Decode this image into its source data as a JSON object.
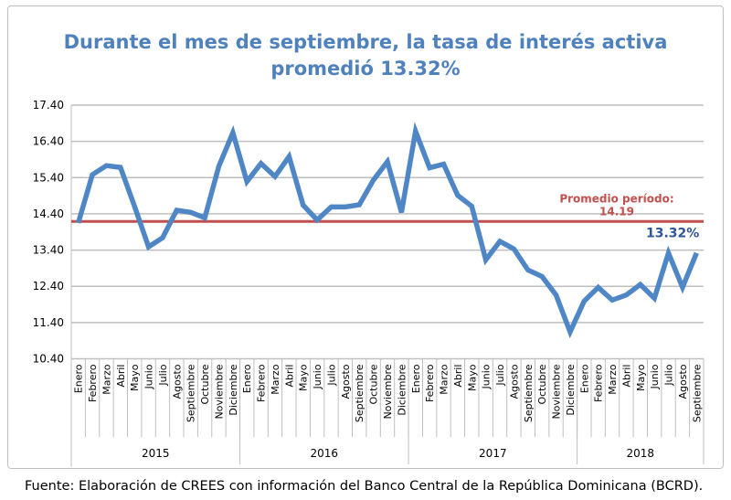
{
  "chart_data": {
    "type": "line",
    "title_line1": "Durante el mes de septiembre, la tasa de interés activa",
    "title_line2": "promedió 13.32%",
    "ylim": [
      10.4,
      17.4
    ],
    "yticks": [
      "17.40",
      "16.40",
      "15.40",
      "14.40",
      "13.40",
      "12.40",
      "11.40",
      "10.40"
    ],
    "grid": true,
    "years": [
      {
        "label": "2015",
        "months": 12
      },
      {
        "label": "2016",
        "months": 12
      },
      {
        "label": "2017",
        "months": 12
      },
      {
        "label": "2018",
        "months": 9
      }
    ],
    "month_names": [
      "Enero",
      "Febrero",
      "Marzo",
      "Abril",
      "Mayo",
      "Junio",
      "Julio",
      "Agosto",
      "Septiembre",
      "Octubre",
      "Noviembre",
      "Diciembre"
    ],
    "series": [
      {
        "name": "Tasa de interés activa",
        "color": "#4f86c6",
        "values": [
          14.15,
          15.48,
          15.73,
          15.68,
          14.61,
          13.49,
          13.74,
          14.5,
          14.44,
          14.29,
          15.71,
          16.64,
          15.29,
          15.79,
          15.43,
          15.98,
          14.64,
          14.23,
          14.59,
          14.59,
          14.65,
          15.33,
          15.84,
          14.44,
          16.68,
          15.67,
          15.77,
          14.91,
          14.61,
          13.13,
          13.64,
          13.43,
          12.85,
          12.67,
          12.16,
          11.14,
          11.99,
          12.37,
          12.02,
          12.16,
          12.45,
          12.07,
          13.32,
          12.37,
          13.32
        ]
      }
    ],
    "average": {
      "value": 14.19,
      "label_line1": "Promedio período:",
      "label_line2": "14.19",
      "color": "#c0504d"
    },
    "last_label": "13.32%",
    "last_label_color": "#2e5597"
  },
  "source": "Fuente: Elaboración de CREES con información del Banco Central de la República Dominicana (BCRD)."
}
